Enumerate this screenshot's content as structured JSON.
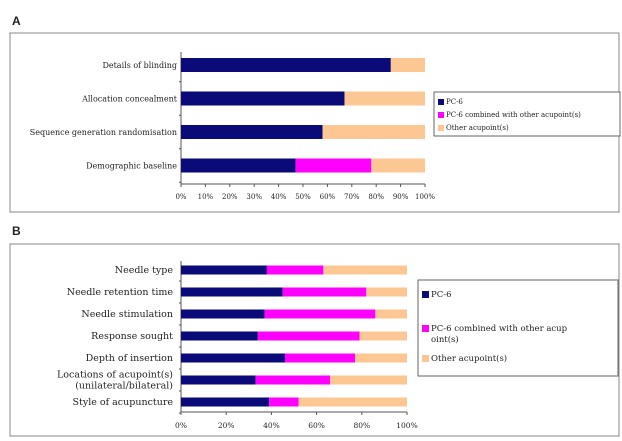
{
  "colors": {
    "pc6": "#0a0a78",
    "combined": "#ff00ff",
    "other": "#fcc793",
    "frame": "#888888"
  },
  "chart_data": [
    {
      "panel": "A",
      "type": "bar",
      "orientation": "horizontal",
      "stacked": true,
      "percent": true,
      "categories": [
        "Details of blinding",
        "Allocation concealment",
        "Sequence generation randomisation",
        "Demographic baseline"
      ],
      "series": [
        {
          "name": "PC-6",
          "values": [
            86,
            67,
            58,
            47
          ]
        },
        {
          "name": "PC-6 combined with other acupoint(s)",
          "values": [
            0,
            0,
            0,
            31
          ]
        },
        {
          "name": "Other acupoint(s)",
          "values": [
            14,
            33,
            42,
            22
          ]
        }
      ],
      "xlim": [
        0,
        100
      ],
      "xticks": [
        "0%",
        "10%",
        "20%",
        "30%",
        "40%",
        "50%",
        "60%",
        "70%",
        "80%",
        "90%",
        "100%"
      ],
      "legend_position": "right"
    },
    {
      "panel": "B",
      "type": "bar",
      "orientation": "horizontal",
      "stacked": true,
      "percent": true,
      "categories": [
        "Needle type",
        "Needle retention time",
        "Needle stimulation",
        "Response sought",
        "Depth of insertion",
        "Locations of acupoint(s)\n(unilateral/bilateral)",
        "Style of acupuncture"
      ],
      "series": [
        {
          "name": "PC-6",
          "values": [
            38,
            45,
            37,
            34,
            46,
            33,
            39
          ]
        },
        {
          "name": "PC-6 combined with other acupoint(s)",
          "values": [
            25,
            37,
            49,
            45,
            31,
            33,
            13
          ]
        },
        {
          "name": "Other acupoint(s)",
          "values": [
            37,
            18,
            14,
            21,
            23,
            34,
            48
          ]
        }
      ],
      "xlim": [
        0,
        100
      ],
      "xticks": [
        "0%",
        "20%",
        "40%",
        "60%",
        "80%",
        "100%"
      ],
      "legend_position": "right",
      "legend_labels": [
        "PC-6",
        "PC-6 combined with other acup\noint(s)",
        "Other acupoint(s)"
      ]
    }
  ]
}
